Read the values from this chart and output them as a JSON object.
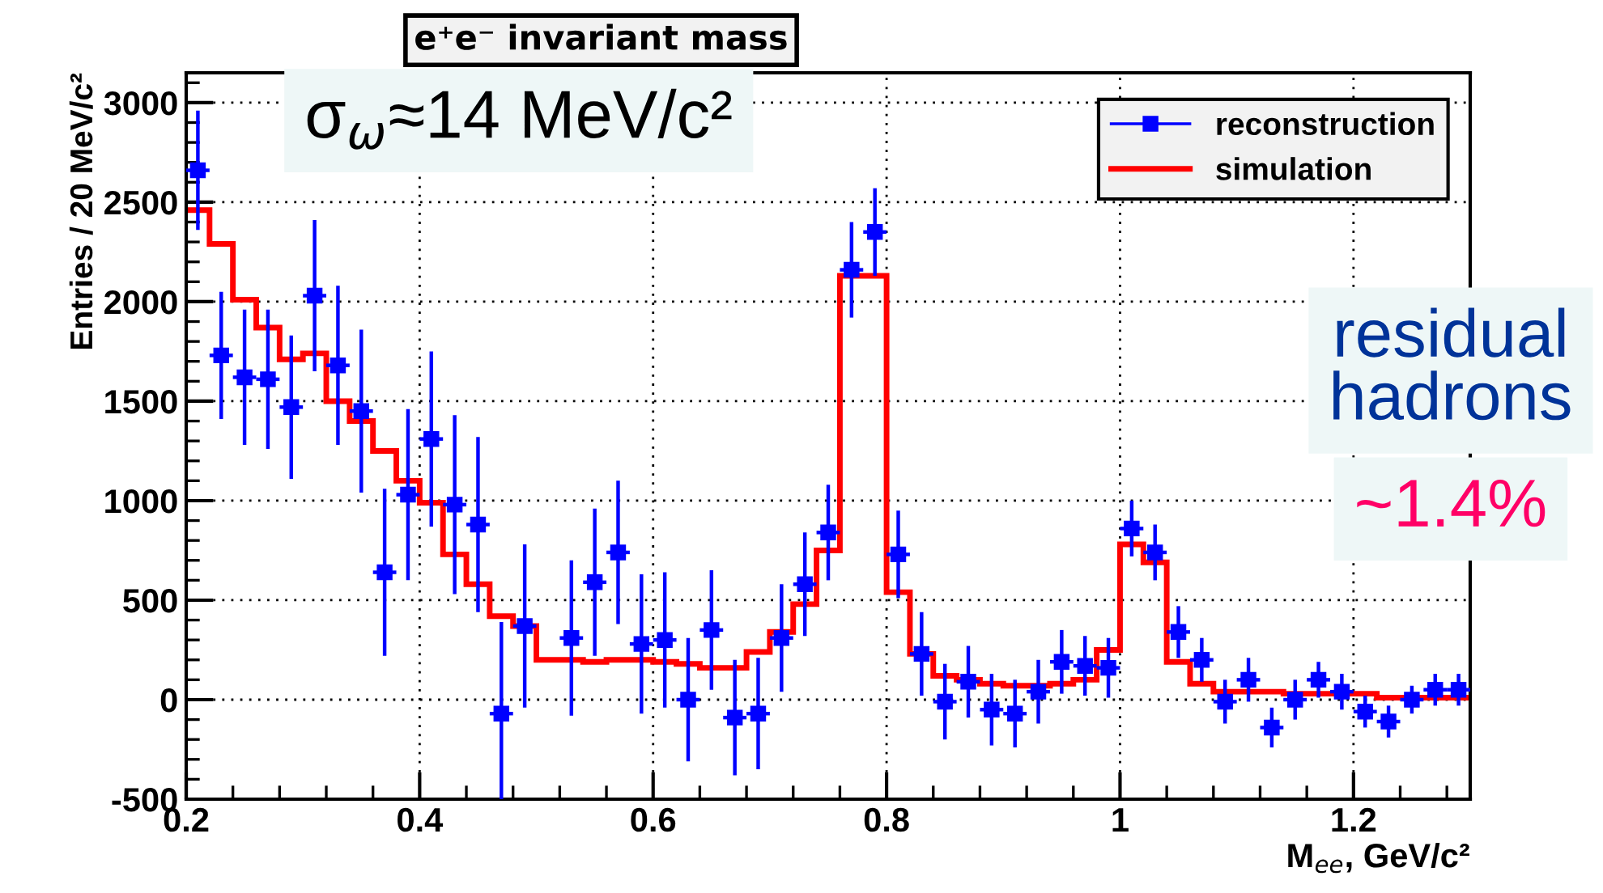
{
  "chart_data": {
    "type": "scatter",
    "title": "e⁺e⁻ invariant mass",
    "xlabel": "M$_{ee}$, GeV/c²",
    "ylabel": "Entries / 20 MeV/c²",
    "annotations": [
      "σ$_{ω}$≈14 MeV/c²",
      "residual\nhadrons",
      "~1.4%"
    ],
    "xlim": [
      0.2,
      1.3
    ],
    "ylim": [
      -500,
      3150
    ],
    "xticks": [
      0.2,
      0.4,
      0.6,
      0.8,
      1,
      1.2
    ],
    "yticks": [
      -500,
      0,
      500,
      1000,
      1500,
      2000,
      2500,
      3000
    ],
    "grid": true,
    "legend": "top right",
    "marker": "square",
    "series": [
      {
        "name": "reconstruction",
        "color": "#0000ff",
        "x": [
          0.21,
          0.23,
          0.25,
          0.27,
          0.29,
          0.31,
          0.33,
          0.35,
          0.37,
          0.39,
          0.41,
          0.43,
          0.45,
          0.47,
          0.49,
          0.51,
          0.53,
          0.55,
          0.57,
          0.59,
          0.61,
          0.63,
          0.65,
          0.67,
          0.69,
          0.71,
          0.73,
          0.75,
          0.77,
          0.79,
          0.81,
          0.83,
          0.85,
          0.87,
          0.89,
          0.91,
          0.93,
          0.95,
          0.97,
          0.99,
          1.01,
          1.03,
          1.05,
          1.07,
          1.09,
          1.11,
          1.13,
          1.15,
          1.17,
          1.19,
          1.21,
          1.23,
          1.25,
          1.27,
          1.29
        ],
        "values": [
          2660,
          1730,
          1620,
          1610,
          1470,
          2030,
          1680,
          1450,
          640,
          1030,
          1310,
          980,
          880,
          -70,
          370,
          null,
          310,
          590,
          740,
          280,
          300,
          0,
          350,
          -90,
          -70,
          310,
          580,
          840,
          2160,
          2350,
          730,
          230,
          -10,
          90,
          -50,
          -70,
          40,
          190,
          170,
          160,
          860,
          740,
          340,
          200,
          -10,
          100,
          -140,
          0,
          100,
          40,
          -60,
          -110,
          0,
          50,
          50
        ],
        "errors": [
          300,
          320,
          340,
          350,
          360,
          380,
          400,
          410,
          420,
          430,
          440,
          450,
          440,
          460,
          410,
          null,
          390,
          370,
          360,
          350,
          340,
          310,
          300,
          290,
          280,
          270,
          260,
          240,
          240,
          220,
          220,
          210,
          190,
          180,
          180,
          170,
          160,
          160,
          150,
          150,
          140,
          140,
          130,
          110,
          110,
          110,
          100,
          100,
          90,
          90,
          80,
          80,
          70,
          80,
          80
        ],
        "xerrors": [
          0.01,
          0.01,
          0.01,
          0.01,
          0.01,
          0.01,
          0.01,
          0.01,
          0.01,
          0.01,
          0.01,
          0.01,
          0.01,
          0.01,
          0.01,
          null,
          0.01,
          0.01,
          0.01,
          0.01,
          0.01,
          0.01,
          0.01,
          0.01,
          0.01,
          0.01,
          0.01,
          0.01,
          0.01,
          0.01,
          0.01,
          0.01,
          0.01,
          0.01,
          0.01,
          0.01,
          0.01,
          0.01,
          0.01,
          0.01,
          0.01,
          0.01,
          0.01,
          0.01,
          0.01,
          0.01,
          0.01,
          0.01,
          0.01,
          0.01,
          0.01,
          0.01,
          0.01,
          0.01,
          0.01
        ]
      },
      {
        "name": "simulation",
        "type": "histogram",
        "color": "#ff0000",
        "bins": [
          0.2,
          0.22,
          0.24,
          0.26,
          0.28,
          0.3,
          0.32,
          0.34,
          0.36,
          0.38,
          0.4,
          0.42,
          0.44,
          0.46,
          0.48,
          0.5,
          0.52,
          0.54,
          0.56,
          0.58,
          0.6,
          0.62,
          0.64,
          0.66,
          0.68,
          0.7,
          0.72,
          0.74,
          0.76,
          0.78,
          0.8,
          0.82,
          0.84,
          0.86,
          0.88,
          0.9,
          0.92,
          0.94,
          0.96,
          0.98,
          1.0,
          1.02,
          1.04,
          1.06,
          1.08,
          1.1,
          1.12,
          1.14,
          1.16,
          1.18,
          1.2,
          1.22,
          1.24,
          1.26,
          1.28,
          1.3
        ],
        "values": [
          2460,
          2290,
          2010,
          1870,
          1710,
          1740,
          1500,
          1400,
          1250,
          1100,
          990,
          730,
          580,
          420,
          370,
          200,
          200,
          190,
          200,
          200,
          190,
          180,
          160,
          160,
          240,
          340,
          480,
          750,
          2130,
          2130,
          540,
          230,
          120,
          100,
          80,
          70,
          70,
          80,
          100,
          250,
          780,
          690,
          190,
          80,
          40,
          40,
          40,
          30,
          30,
          30,
          30,
          10,
          10,
          10,
          10
        ]
      }
    ]
  }
}
